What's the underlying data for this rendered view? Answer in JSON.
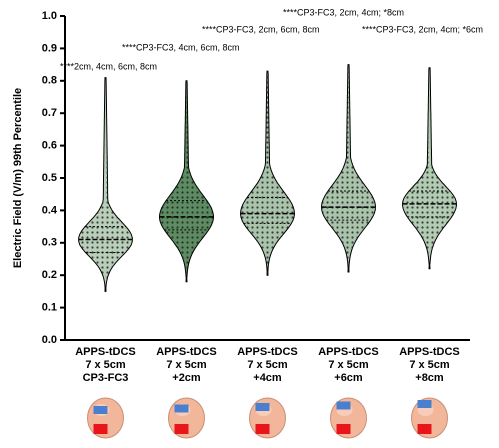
{
  "chart_data": {
    "type": "violin",
    "y_label": "Electric Field (V/m) 99th Percentile",
    "categories": [
      [
        "APPS-tDCS",
        "7 x 5cm",
        "CP3-FC3"
      ],
      [
        "APPS-tDCS",
        "7 x 5cm",
        "+2cm"
      ],
      [
        "APPS-tDCS",
        "7 x 5cm",
        "+4cm"
      ],
      [
        "APPS-tDCS",
        "7 x 5cm",
        "+6cm"
      ],
      [
        "APPS-tDCS",
        "7 x 5cm",
        "+8cm"
      ]
    ],
    "stats": [
      {
        "min": 0.15,
        "q1": 0.27,
        "median": 0.31,
        "q3": 0.35,
        "max": 0.81,
        "color": "#b9cfba"
      },
      {
        "min": 0.18,
        "q1": 0.34,
        "median": 0.38,
        "q3": 0.43,
        "max": 0.8,
        "color": "#5e8c62"
      },
      {
        "min": 0.2,
        "q1": 0.36,
        "median": 0.39,
        "q3": 0.44,
        "max": 0.83,
        "color": "#a9c4ab"
      },
      {
        "min": 0.21,
        "q1": 0.37,
        "median": 0.41,
        "q3": 0.46,
        "max": 0.85,
        "color": "#a9c4ab"
      },
      {
        "min": 0.22,
        "q1": 0.38,
        "median": 0.42,
        "q3": 0.46,
        "max": 0.84,
        "color": "#b2cbb3"
      }
    ],
    "annotations": [
      "****2cm, 4cm, 6cm, 8cm",
      "****CP3-FC3, 4cm, 6cm, 8cm",
      "****CP3-FC3, 2cm, 6cm, 8cm",
      "****CP3-FC3, 2cm, 4cm; *8cm",
      "****CP3-FC3, 2cm, 4cm; *6cm"
    ],
    "ylim": [
      0,
      1
    ],
    "yticks": [
      {
        "value": 0,
        "label": "0.0"
      },
      {
        "value": 0.1,
        "label": "0.1"
      },
      {
        "value": 0.2,
        "label": "0.2"
      },
      {
        "value": 0.3,
        "label": "0.3"
      },
      {
        "value": 0.4,
        "label": "0.4"
      },
      {
        "value": 0.5,
        "label": "0.5"
      },
      {
        "value": 0.6,
        "label": "0.6"
      },
      {
        "value": 0.7,
        "label": "0.7"
      },
      {
        "value": 0.8,
        "label": "0.8"
      },
      {
        "value": 0.9,
        "label": "0.9"
      },
      {
        "value": 1,
        "label": "1.0"
      }
    ]
  }
}
